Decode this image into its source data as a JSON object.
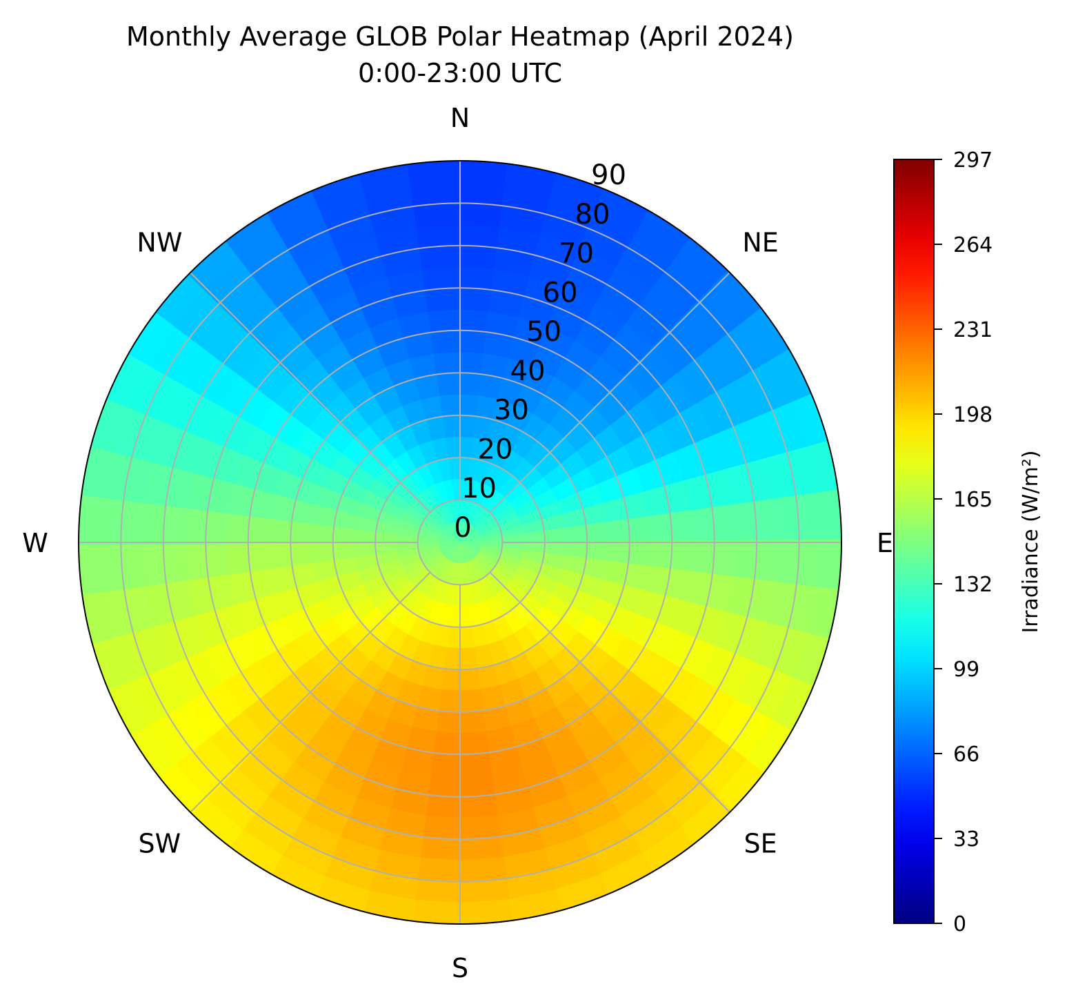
{
  "chart_data": {
    "type": "heatmap",
    "projection": "polar",
    "title": "Monthly Average GLOB Polar Heatmap (April 2024)",
    "subtitle": "0:00-23:00 UTC",
    "directions": [
      "N",
      "NE",
      "E",
      "SE",
      "S",
      "SW",
      "W",
      "NW"
    ],
    "direction_angles_deg": [
      0,
      45,
      90,
      135,
      180,
      225,
      270,
      315
    ],
    "radial_ticks": [
      0,
      10,
      20,
      30,
      40,
      50,
      60,
      70,
      80,
      90
    ],
    "radial_range": [
      0,
      90
    ],
    "grid": true,
    "colormap": "jet",
    "colorbar": {
      "label": "Irradiance (W/m²)",
      "ticks": [
        0,
        33,
        66,
        99,
        132,
        165,
        198,
        231,
        264,
        297
      ],
      "range": [
        0,
        297
      ],
      "position": "right"
    },
    "grid_azimuth_deg": [
      0,
      22.5,
      45,
      67.5,
      90,
      112.5,
      135,
      157.5,
      180,
      202.5,
      225,
      247.5,
      270,
      292.5,
      315,
      337.5
    ],
    "grid_zenith_deg": [
      0,
      10,
      20,
      30,
      40,
      50,
      60,
      70,
      80,
      90
    ],
    "values": [
      [
        140,
        140,
        140,
        140,
        140,
        140,
        140,
        140,
        140,
        140,
        140,
        140,
        140,
        140,
        140,
        140
      ],
      [
        110,
        113,
        120,
        130,
        145,
        158,
        168,
        174,
        176,
        174,
        168,
        160,
        152,
        143,
        130,
        118
      ],
      [
        95,
        97,
        103,
        120,
        147,
        168,
        180,
        188,
        191,
        188,
        180,
        168,
        155,
        140,
        120,
        103
      ],
      [
        80,
        84,
        92,
        112,
        147,
        172,
        190,
        200,
        205,
        200,
        190,
        175,
        157,
        135,
        110,
        90
      ],
      [
        70,
        74,
        83,
        105,
        147,
        176,
        198,
        210,
        215,
        210,
        198,
        180,
        158,
        130,
        102,
        80
      ],
      [
        63,
        67,
        76,
        100,
        147,
        178,
        203,
        215,
        220,
        214,
        201,
        181,
        158,
        127,
        96,
        72
      ],
      [
        57,
        62,
        72,
        97,
        146,
        178,
        205,
        215,
        220,
        213,
        200,
        180,
        155,
        125,
        92,
        66
      ],
      [
        54,
        60,
        70,
        96,
        145,
        176,
        203,
        210,
        216,
        208,
        196,
        178,
        152,
        124,
        90,
        63
      ],
      [
        52,
        58,
        69,
        96,
        144,
        173,
        198,
        203,
        208,
        202,
        192,
        176,
        150,
        124,
        90,
        62
      ],
      [
        52,
        58,
        70,
        97,
        144,
        170,
        192,
        197,
        200,
        196,
        188,
        175,
        150,
        125,
        91,
        62
      ]
    ]
  }
}
